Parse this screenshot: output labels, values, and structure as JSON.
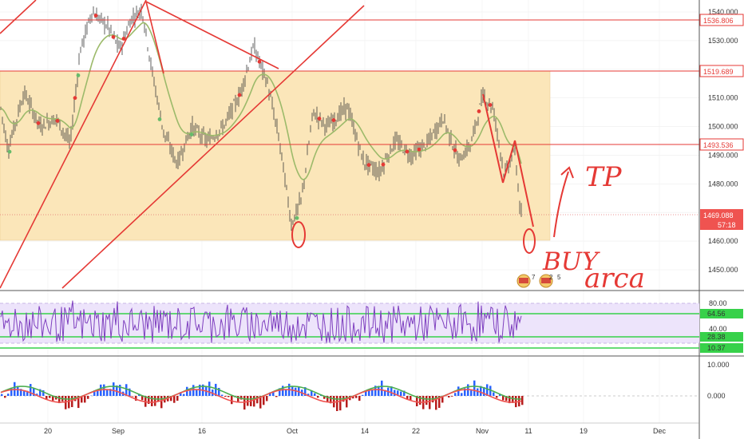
{
  "price_axis": {
    "ticks": [
      "1540.000",
      "1530.000",
      "1520.000",
      "1510.000",
      "1500.000",
      "1490.000",
      "1480.000",
      "1470.000",
      "1460.000",
      "1450.000"
    ],
    "tick_values": [
      1540,
      1530,
      1520,
      1510,
      1500,
      1490,
      1480,
      1470,
      1460,
      1450
    ]
  },
  "price_labels": {
    "level_1536": "1536.806",
    "level_1519": "1519.689",
    "level_1493": "1493.536",
    "last_price": "1469.088",
    "countdown": "57:18"
  },
  "rsi_axis": {
    "ticks": [
      "80.00",
      "60.00",
      "40.00"
    ],
    "tick_values": [
      80,
      60,
      40
    ]
  },
  "rsi_labels": {
    "upper": "64.56",
    "middle": "28.38",
    "lower": "10.37"
  },
  "osc_axis": {
    "ticks": [
      "10.000",
      "0.000"
    ],
    "tick_values": [
      10,
      0
    ]
  },
  "time_axis": {
    "labels": [
      "20",
      "Sep",
      "16",
      "Oct",
      "14",
      "22",
      "Nov",
      "11",
      "19",
      "Dec"
    ]
  },
  "event_icons": {
    "first_count": "7",
    "second_count": "2",
    "third_count": "5"
  },
  "handwriting": {
    "tp": "TP",
    "buy": "BUY",
    "area": "arca",
    "zero": "0"
  },
  "colors": {
    "background": "#ffffff",
    "range_fill": "#fbe6b9",
    "red_line": "#e53935",
    "candle": "#333333",
    "ma": "#9cba6a",
    "rsi": "#7e3fbf",
    "rsi_band": "#ede4fb",
    "green_level": "#37d14a",
    "last_price_bg": "#ef5350",
    "axis_text": "#333333",
    "grid": "#e8e8e8"
  },
  "chart_data": {
    "type": "candlestick",
    "y_range": [
      1442,
      1544
    ],
    "levels": [
      1536.806,
      1519.689,
      1493.536,
      1469.088
    ],
    "range_box": [
      1460,
      1519.689
    ]
  }
}
